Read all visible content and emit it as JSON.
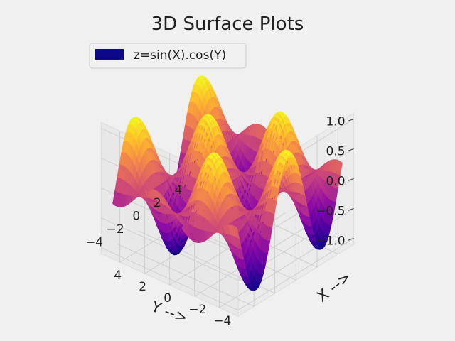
{
  "chart_data": {
    "type": "surface",
    "title": "3D Surface Plots",
    "function": "z=sin(X).cos(Y)",
    "colormap": "plasma",
    "legend": {
      "label": "z=sin(X).cos(Y)",
      "position": "top-left",
      "color": "#0d0887"
    },
    "x_range": [
      -5,
      5
    ],
    "y_range": [
      -5,
      5
    ],
    "z_range": [
      -1,
      1
    ],
    "xlabel": "X -->",
    "ylabel": "Y -->",
    "x_ticks": [
      "−4",
      "−2",
      "0",
      "2",
      "4"
    ],
    "y_ticks": [
      "−4",
      "−2",
      "0",
      "2",
      "4"
    ],
    "z_ticks": [
      "−1.0",
      "−0.5",
      "0.0",
      "0.5",
      "1.0"
    ],
    "grid": true,
    "background": "#f0f0f0"
  }
}
